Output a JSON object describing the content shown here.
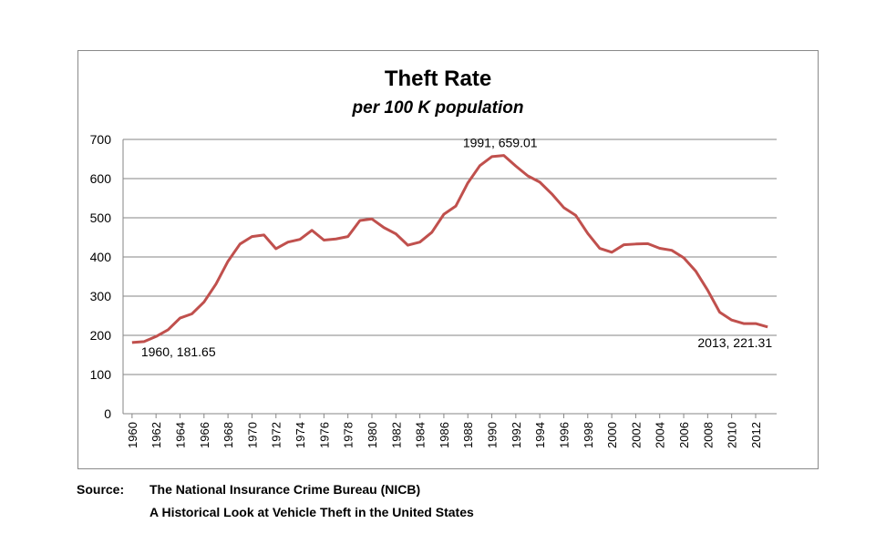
{
  "chart_data": {
    "type": "line",
    "title": "Theft Rate",
    "subtitle": "per 100 K population",
    "xlabel": "",
    "ylabel": "",
    "ylim": [
      0,
      700
    ],
    "yticks": [
      0,
      100,
      200,
      300,
      400,
      500,
      600,
      700
    ],
    "xtick_labels": [
      "1960",
      "1962",
      "1964",
      "1966",
      "1968",
      "1970",
      "1972",
      "1974",
      "1976",
      "1978",
      "1980",
      "1982",
      "1984",
      "1986",
      "1988",
      "1990",
      "1992",
      "1994",
      "1996",
      "1998",
      "2000",
      "2002",
      "2004",
      "2006",
      "2008",
      "2010",
      "2012"
    ],
    "grid": true,
    "line_color": "#c0504d",
    "x": [
      1960,
      1961,
      1962,
      1963,
      1964,
      1965,
      1966,
      1967,
      1968,
      1969,
      1970,
      1971,
      1972,
      1973,
      1974,
      1975,
      1976,
      1977,
      1978,
      1979,
      1980,
      1981,
      1982,
      1983,
      1984,
      1985,
      1986,
      1987,
      1988,
      1989,
      1990,
      1991,
      1992,
      1993,
      1994,
      1995,
      1996,
      1997,
      1998,
      1999,
      2000,
      2001,
      2002,
      2003,
      2004,
      2005,
      2006,
      2007,
      2008,
      2009,
      2010,
      2011,
      2012,
      2013
    ],
    "values": [
      181.65,
      184,
      197,
      214,
      244,
      255,
      285,
      331,
      389,
      433,
      452,
      456,
      421,
      438,
      445,
      468,
      443,
      446,
      452,
      493,
      497,
      475,
      459,
      430,
      438,
      463,
      509,
      530,
      589,
      633,
      656,
      659.01,
      632,
      607,
      591,
      561,
      526,
      506,
      460,
      422,
      412,
      431,
      433,
      434,
      422,
      417,
      398,
      364,
      315,
      259,
      239,
      230,
      230,
      221.31
    ],
    "annotations": [
      {
        "label": "1960, 181.65",
        "x": 1960
      },
      {
        "label": "1991, 659.01",
        "x": 1991
      },
      {
        "label": "2013, 221.31",
        "x": 2013
      }
    ]
  },
  "source": {
    "label": "Source:",
    "line1": "The National Insurance Crime Bureau (NICB)",
    "line2": "A Historical Look at Vehicle Theft in the United States"
  }
}
